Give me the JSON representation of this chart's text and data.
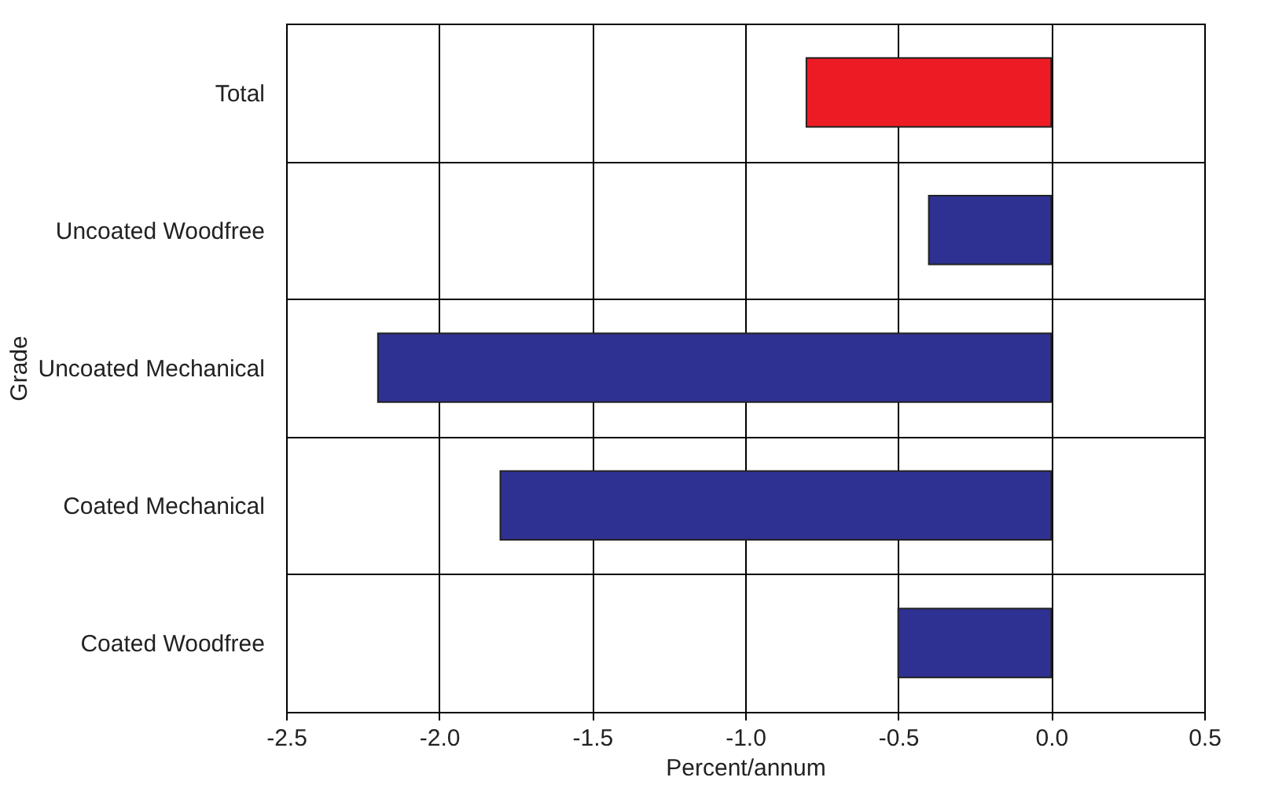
{
  "chart_data": {
    "type": "bar",
    "orientation": "horizontal",
    "ylabel": "Grade",
    "xlabel": "Percent/annum",
    "categories": [
      "Total",
      "Uncoated Woodfree",
      "Uncoated Mechanical",
      "Coated Mechanical",
      "Coated Woodfree"
    ],
    "values": [
      -0.8,
      -0.4,
      -2.2,
      -1.8,
      -0.5
    ],
    "colors": [
      "#ed1c24",
      "#2e3192",
      "#2e3192",
      "#2e3192",
      "#2e3192"
    ],
    "xlim": [
      -2.5,
      0.5
    ],
    "xticks": [
      {
        "value": -2.5,
        "label": "-2.5"
      },
      {
        "value": -2,
        "label": "-2.0"
      },
      {
        "value": -1.5,
        "label": "-1.5"
      },
      {
        "value": -1,
        "label": "-1.0"
      },
      {
        "value": -0.5,
        "label": "-0.5"
      },
      {
        "value": 0,
        "label": "0.0"
      },
      {
        "value": 0.5,
        "label": "0.5"
      }
    ],
    "grid": true
  }
}
